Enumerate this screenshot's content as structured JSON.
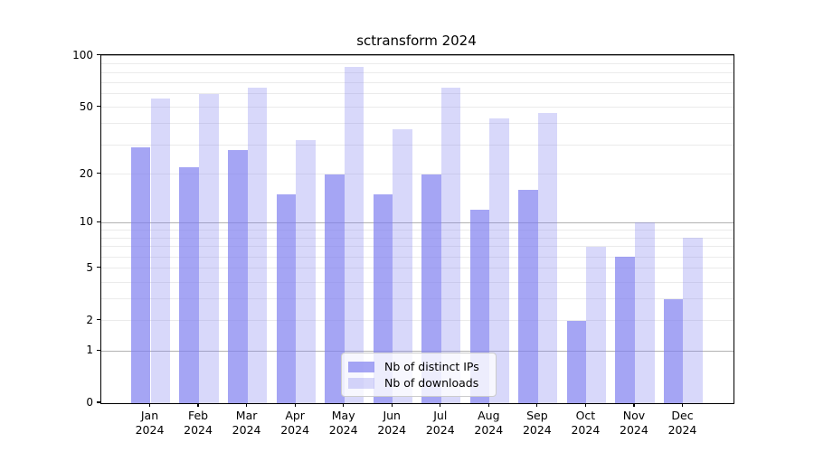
{
  "title": "sctransform 2024",
  "chart_data": {
    "type": "bar",
    "title": "sctransform 2024",
    "categories": [
      "Jan",
      "Feb",
      "Mar",
      "Apr",
      "May",
      "Jun",
      "Jul",
      "Aug",
      "Sep",
      "Oct",
      "Nov",
      "Dec"
    ],
    "xtick_second_line": "2024",
    "series": [
      {
        "name": "Nb of distinct IPs",
        "color": "rgba(127,127,240,0.7)",
        "values": [
          29,
          22,
          28,
          15,
          20,
          15,
          20,
          12,
          16,
          2,
          6,
          3
        ]
      },
      {
        "name": "Nb of downloads",
        "color": "rgba(127,127,240,0.3)",
        "values": [
          56,
          60,
          65,
          32,
          86,
          37,
          65,
          43,
          46,
          7,
          10,
          8
        ]
      }
    ],
    "yscale": "log1p",
    "ylim": [
      0,
      100
    ],
    "yticks": [
      100,
      50,
      20,
      10,
      5,
      2,
      1,
      0
    ],
    "minor_gridlines": [
      2,
      3,
      4,
      5,
      6,
      7,
      8,
      9,
      20,
      30,
      40,
      50,
      60,
      70,
      80,
      90
    ],
    "major_gridlines": [
      1,
      10,
      100
    ],
    "grid": true,
    "legend_position": "lower center",
    "colors": {
      "major_grid": "#b2b2b2",
      "minor_grid": "#ebebeb",
      "spine": "#000000",
      "text": "#000000"
    }
  }
}
